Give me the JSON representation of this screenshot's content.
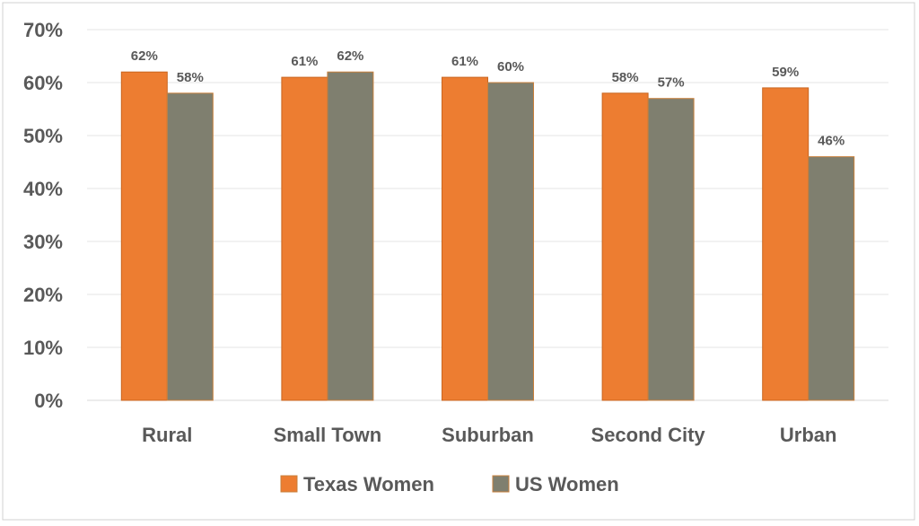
{
  "chart_data": {
    "type": "bar",
    "title": "",
    "xlabel": "",
    "ylabel": "",
    "categories": [
      "Rural",
      "Small Town",
      "Suburban",
      "Second City",
      "Urban"
    ],
    "series": [
      {
        "name": "Texas Women",
        "values": [
          62,
          61,
          61,
          58,
          59
        ],
        "labels": [
          "62%",
          "61%",
          "61%",
          "58%",
          "59%"
        ],
        "color": "#ED7D31"
      },
      {
        "name": "US Women",
        "values": [
          58,
          62,
          60,
          57,
          46
        ],
        "labels": [
          "58%",
          "62%",
          "60%",
          "57%",
          "46%"
        ],
        "color": "#7F7F6F"
      }
    ],
    "ylim": [
      0,
      70
    ],
    "yticks": [
      0,
      10,
      20,
      30,
      40,
      50,
      60,
      70
    ],
    "ytick_labels": [
      "0%",
      "10%",
      "20%",
      "30%",
      "40%",
      "50%",
      "60%",
      "70%"
    ],
    "grid": true,
    "legend_position": "bottom"
  }
}
